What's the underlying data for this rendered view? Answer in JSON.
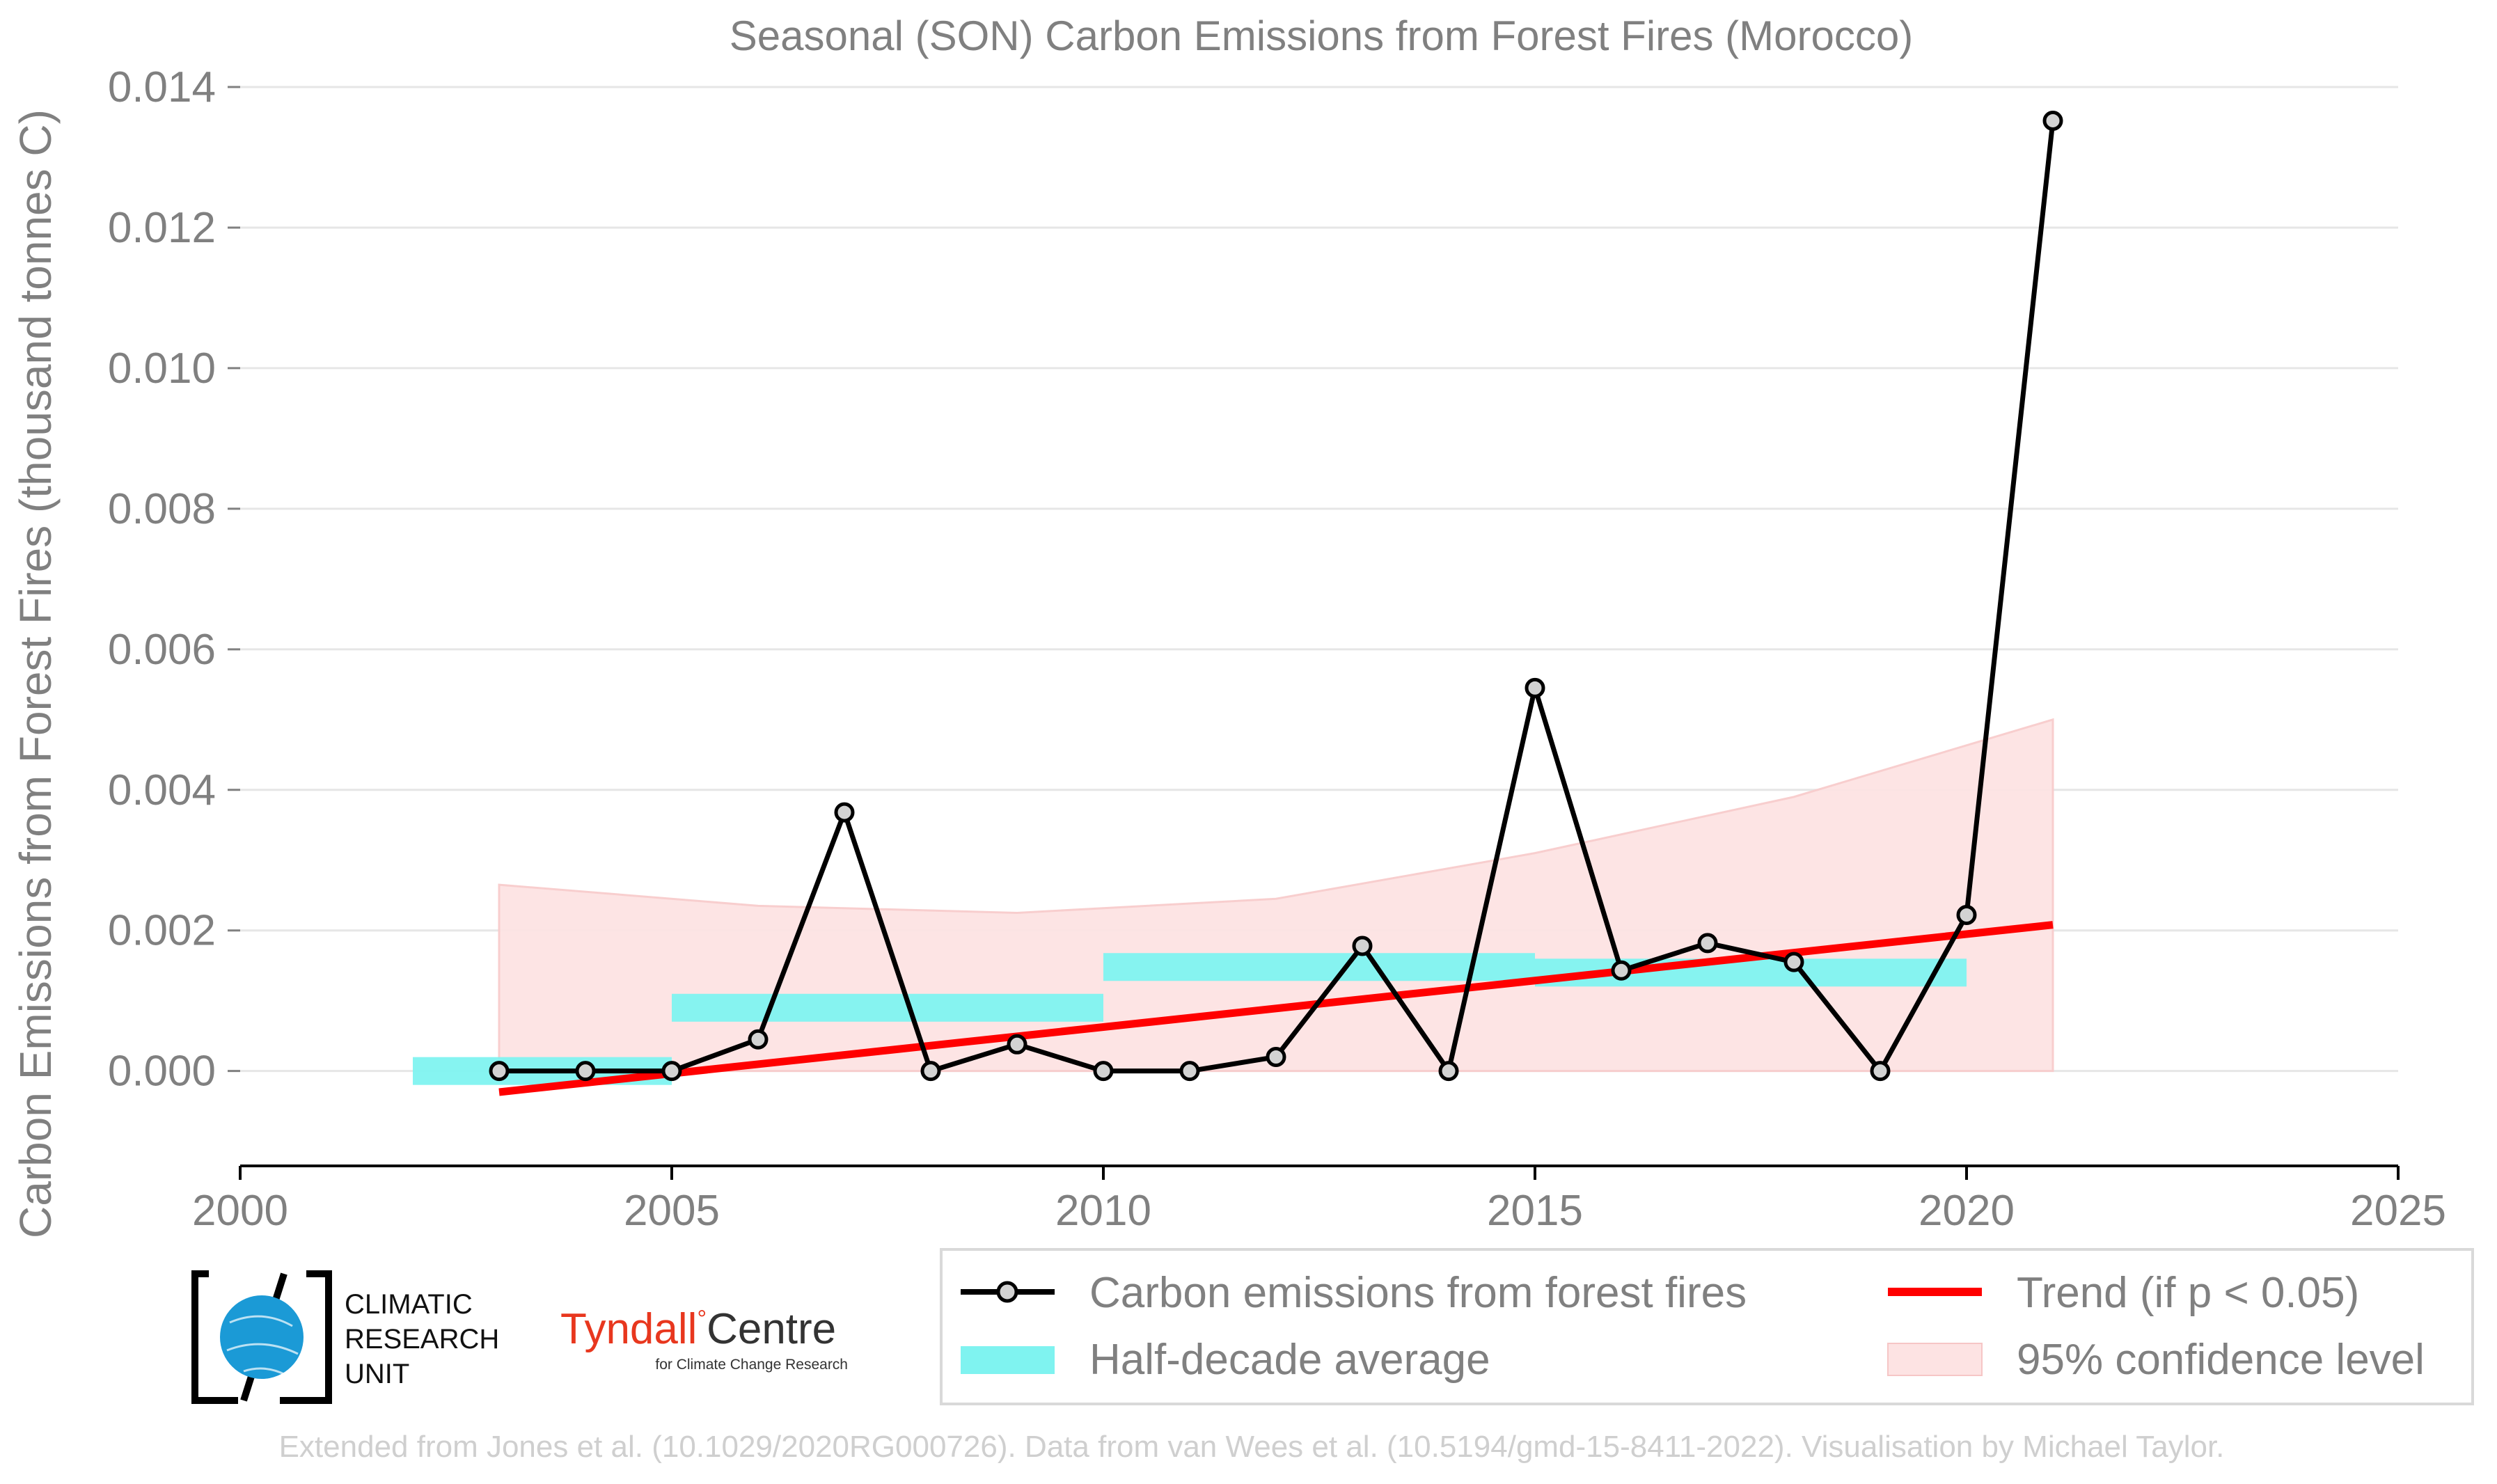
{
  "chart_data": {
    "type": "line",
    "title": "Seasonal (SON) Carbon Emissions from Forest Fires (Morocco)",
    "xlabel": "",
    "ylabel": "Carbon Emissions from Forest Fires (thousand tonnes C)",
    "xlim": [
      2000,
      2025
    ],
    "ylim": [
      -0.00135,
      0.014
    ],
    "x_ticks": [
      "2000",
      "2005",
      "2010",
      "2015",
      "2020",
      "2025"
    ],
    "x_tick_values": [
      2000,
      2005,
      2010,
      2015,
      2020,
      2025
    ],
    "y_ticks": [
      "0.000",
      "0.002",
      "0.004",
      "0.006",
      "0.008",
      "0.010",
      "0.012",
      "0.014"
    ],
    "y_tick_values": [
      0,
      0.002,
      0.004,
      0.006,
      0.008,
      0.01,
      0.012,
      0.014
    ],
    "grid": "horizontal",
    "legend_position": "bottom-right",
    "series": [
      {
        "name": "Carbon emissions from forest fires",
        "kind": "line-markers",
        "color": "#000000",
        "x": [
          2003,
          2004,
          2005,
          2006,
          2007,
          2008,
          2009,
          2010,
          2011,
          2012,
          2013,
          2014,
          2015,
          2016,
          2017,
          2018,
          2019,
          2020,
          2021
        ],
        "values": [
          0.0,
          0.0,
          0.0,
          0.00045,
          0.00368,
          0.0,
          0.00038,
          0.0,
          0.0,
          0.0002,
          0.00178,
          0.0,
          0.00545,
          0.00143,
          0.00182,
          0.00155,
          0.0,
          0.00222,
          0.01352
        ]
      },
      {
        "name": "Half-decade average",
        "kind": "bars",
        "color": "#7ff3f0",
        "segments": [
          {
            "x0": 2002,
            "x1": 2005,
            "value": 0.0
          },
          {
            "x0": 2005,
            "x1": 2010,
            "value": 0.0009
          },
          {
            "x0": 2010,
            "x1": 2015,
            "value": 0.00148
          },
          {
            "x0": 2015,
            "x1": 2020,
            "value": 0.0014
          }
        ]
      },
      {
        "name": "Trend (if p < 0.05)",
        "kind": "line",
        "color": "#ff0000",
        "x": [
          2003,
          2021
        ],
        "values": [
          -0.0003,
          0.00208
        ]
      },
      {
        "name": "95% confidence level",
        "kind": "band",
        "color": "#fde3e3",
        "x": [
          2003,
          2006,
          2009,
          2012,
          2015,
          2018,
          2021
        ],
        "lower": [
          0,
          0,
          0,
          0,
          0,
          0,
          0
        ],
        "upper": [
          0.00265,
          0.00235,
          0.00225,
          0.00245,
          0.0031,
          0.0039,
          0.005
        ]
      }
    ]
  },
  "logos": {
    "cru_lines": [
      "CLIMATIC",
      "RESEARCH",
      "UNIT"
    ],
    "tyndall_main": "Tyndall",
    "tyndall_degree": "°",
    "tyndall_centre": "Centre",
    "tyndall_sub": "for Climate Change Research"
  },
  "footer": "Extended from Jones et al. (10.1029/2020RG000726). Data from van Wees et al. (10.5194/gmd-15-8411-2022). Visualisation by Michael Taylor.",
  "colors": {
    "text_grey": "#808080",
    "grid": "#e6e6e6",
    "trend_red": "#ff0000",
    "half_decade_cyan": "#7ff3f0",
    "confidence_pink": "#fde3e3",
    "cru_blue": "#1b9ad6",
    "tyndall_red": "#e8371e"
  }
}
